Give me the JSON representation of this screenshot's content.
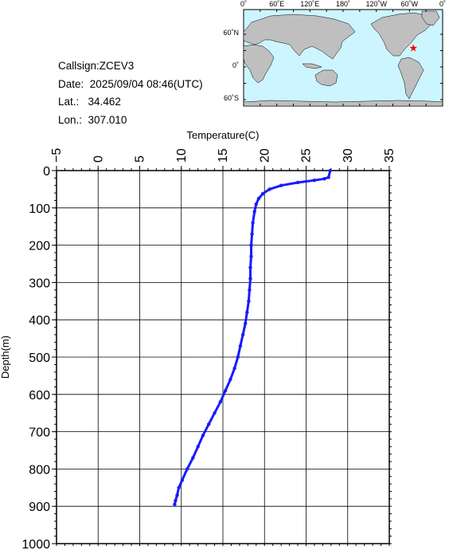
{
  "station": {
    "callsign_label": "Callsign:",
    "callsign": "ZCEV3",
    "date_label": "Date:",
    "date": "2025/09/04 08:46(UTC)",
    "lat_label": "Lat.:",
    "lat": "34.462",
    "lon_label": "Lon.:",
    "lon": "307.010"
  },
  "map": {
    "lon_labels": [
      "0˚",
      "60˚E",
      "120˚E",
      "180˚",
      "120˚W",
      "60˚W",
      "0˚"
    ],
    "lat_labels": [
      "60˚N",
      "0˚",
      "60˚S"
    ],
    "ocean_color": "#ccf5ff",
    "land_color": "#bfbfbf",
    "marker": {
      "lon": 307.01,
      "lat": 34.462,
      "color": "#ff0000",
      "icon": "star-icon"
    }
  },
  "chart_data": {
    "type": "line",
    "xlabel": "Temperature(C)",
    "ylabel": "Depth(m)",
    "xlim": [
      -5,
      35
    ],
    "ylim": [
      0,
      1000
    ],
    "y_inverted": true,
    "x_axis_position": "top",
    "x_ticks": [
      -5,
      0,
      5,
      10,
      15,
      20,
      25,
      30,
      35
    ],
    "y_ticks": [
      0,
      100,
      200,
      300,
      400,
      500,
      600,
      700,
      800,
      900,
      1000
    ],
    "grid": true,
    "line_color": "#1a1aff",
    "series": [
      {
        "x": [
          27.9,
          27.7,
          27.2,
          26.0,
          24.0,
          22.0,
          20.6,
          19.8,
          19.3,
          19.0,
          18.8,
          18.6,
          18.5,
          18.4,
          18.4,
          18.3,
          18.3,
          18.2,
          18.1,
          17.9,
          17.7,
          17.4,
          17.1,
          16.8,
          16.4,
          15.9,
          15.3,
          14.7,
          14.0,
          13.3,
          12.6,
          12.0,
          11.4,
          10.7,
          10.1,
          9.7,
          9.5,
          9.3,
          9.2
        ],
        "y": [
          0,
          18,
          22,
          26,
          32,
          40,
          50,
          62,
          75,
          90,
          110,
          140,
          170,
          200,
          230,
          260,
          290,
          320,
          350,
          380,
          410,
          440,
          470,
          500,
          530,
          560,
          590,
          620,
          650,
          680,
          710,
          740,
          770,
          800,
          830,
          850,
          870,
          885,
          895
        ]
      }
    ]
  }
}
